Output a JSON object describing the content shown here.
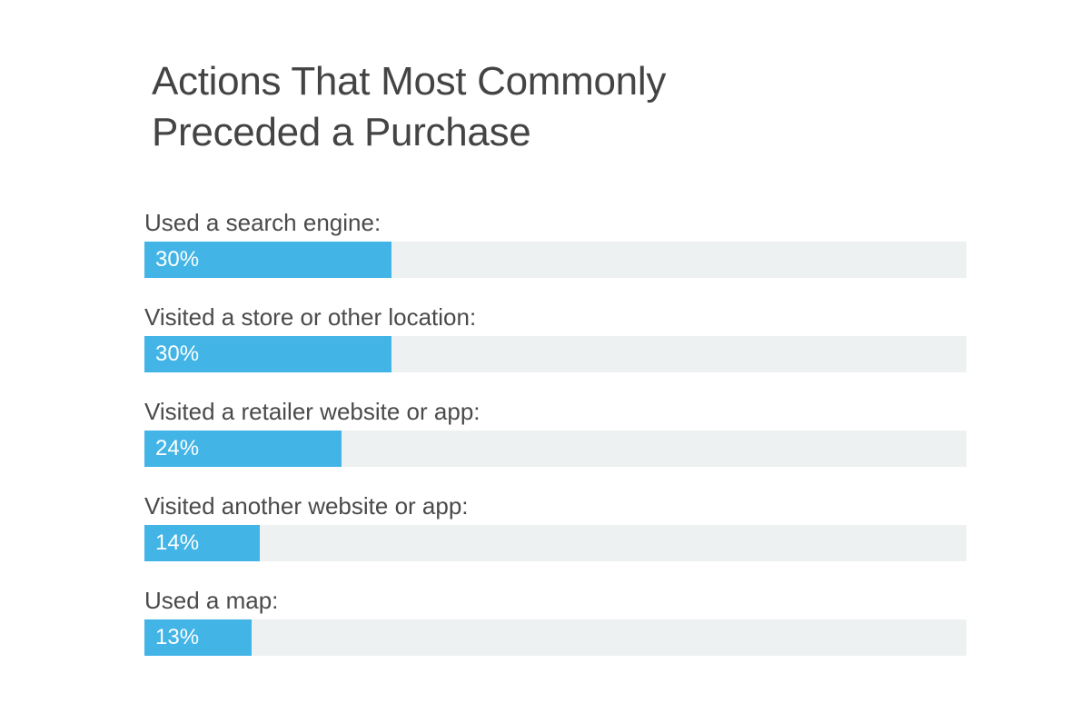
{
  "chart_data": {
    "type": "bar",
    "orientation": "horizontal",
    "title_lines": [
      "Actions That Most Commonly",
      "Preceded a Purchase"
    ],
    "categories": [
      "Used a search engine:",
      "Visited a store or other location:",
      "Visited a retailer website or app:",
      "Visited another website or app:",
      "Used a map:"
    ],
    "values": [
      30,
      30,
      24,
      14,
      13
    ],
    "value_labels": [
      "30%",
      "30%",
      "24%",
      "14%",
      "13%"
    ],
    "unit": "%",
    "xlim": [
      0,
      100
    ],
    "grid": false,
    "legend": "none",
    "colors": {
      "bar": "#42b4e6",
      "track": "#eef1f2",
      "title": "#444444",
      "label": "#4a4a4a",
      "value": "#ffffff"
    }
  }
}
